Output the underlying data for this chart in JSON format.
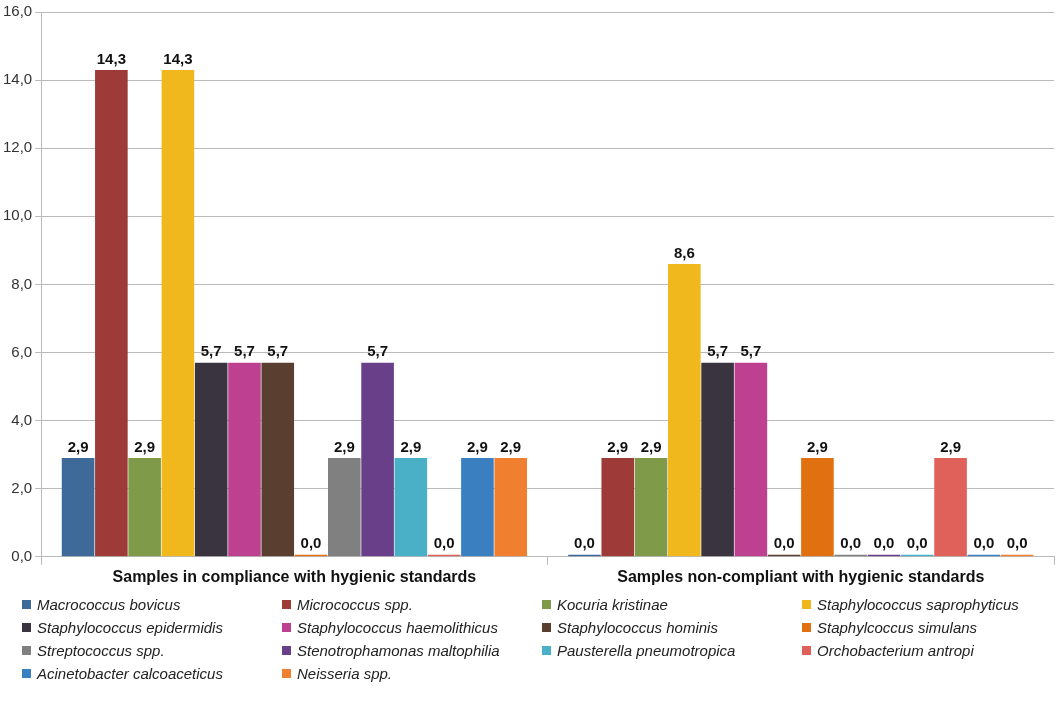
{
  "chart_data": {
    "type": "bar",
    "categories": [
      "Samples in compliance with hygienic standards",
      "Samples non-compliant with hygienic standards"
    ],
    "ylim": [
      0,
      16
    ],
    "yticks": [
      {
        "value": 0,
        "label": "0,0"
      },
      {
        "value": 2,
        "label": "2,0"
      },
      {
        "value": 4,
        "label": "4,0"
      },
      {
        "value": 6,
        "label": "6,0"
      },
      {
        "value": 8,
        "label": "8,0"
      },
      {
        "value": 10,
        "label": "10,0"
      },
      {
        "value": 12,
        "label": "12,0"
      },
      {
        "value": 14,
        "label": "14,0"
      },
      {
        "value": 16,
        "label": "16,0"
      }
    ],
    "grid": "y",
    "legend": "bottom",
    "series": [
      {
        "name": "Macrococcus bovicus",
        "color": "#3e6a9a",
        "values": [
          2.9,
          0
        ],
        "value_labels": [
          "2,9",
          "0,0"
        ]
      },
      {
        "name": "Micrococcus spp.",
        "color": "#9e3a38",
        "values": [
          14.3,
          2.9
        ],
        "value_labels": [
          "14,3",
          "2,9"
        ]
      },
      {
        "name": "Kocuria kristinae",
        "color": "#7f9a48",
        "values": [
          2.9,
          2.9
        ],
        "value_labels": [
          "2,9",
          "2,9"
        ]
      },
      {
        "name": "Staphylococcus saprophyticus",
        "color": "#f0b81c",
        "values": [
          14.3,
          8.6
        ],
        "value_labels": [
          "14,3",
          "8,6"
        ]
      },
      {
        "name": "Staphylococcus epidermidis",
        "color": "#3a3440",
        "values": [
          5.7,
          5.7
        ],
        "value_labels": [
          "5,7",
          "5,7"
        ]
      },
      {
        "name": "Staphylococcus haemolithicus",
        "color": "#bd4190",
        "values": [
          5.7,
          5.7
        ],
        "value_labels": [
          "5,7",
          "5,7"
        ]
      },
      {
        "name": "Staphylococcus hominis",
        "color": "#5a3e30",
        "values": [
          5.7,
          0
        ],
        "value_labels": [
          "5,7",
          "0,0"
        ]
      },
      {
        "name": "Staphylcoccus simulans",
        "color": "#e07010",
        "values": [
          0,
          2.9
        ],
        "value_labels": [
          "0,0",
          "2,9"
        ]
      },
      {
        "name": "Streptococcus spp.",
        "color": "#808080",
        "values": [
          2.9,
          0
        ],
        "value_labels": [
          "2,9",
          "0,0"
        ]
      },
      {
        "name": "Stenotrophamonas maltophilia",
        "color": "#6a3f8a",
        "values": [
          5.7,
          0
        ],
        "value_labels": [
          "5,7",
          "0,0"
        ]
      },
      {
        "name": "Pausterella pneumotropica",
        "color": "#4ab0c8",
        "values": [
          2.9,
          0
        ],
        "value_labels": [
          "2,9",
          "0,0"
        ]
      },
      {
        "name": "Orchobacterium antropi",
        "color": "#e0605a",
        "values": [
          0,
          2.9
        ],
        "value_labels": [
          "0,0",
          "2,9"
        ]
      },
      {
        "name": "Acinetobacter calcoaceticus",
        "color": "#3a7fc0",
        "values": [
          2.9,
          0
        ],
        "value_labels": [
          "2,9",
          "0,0"
        ]
      },
      {
        "name": "Neisseria spp.",
        "color": "#f08030",
        "values": [
          2.9,
          0
        ],
        "value_labels": [
          "2,9",
          "0,0"
        ]
      }
    ]
  }
}
